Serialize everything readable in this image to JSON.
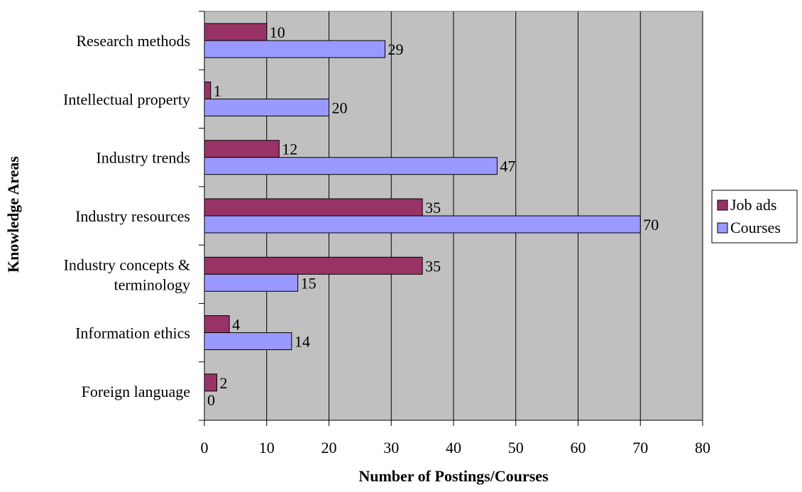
{
  "chart_data": {
    "type": "bar",
    "orientation": "horizontal",
    "categories": [
      "Research methods",
      "Intellectual property",
      "Industry trends",
      "Industry resources",
      "Industry concepts & terminology",
      "Information ethics",
      "Foreign language"
    ],
    "category_label_lines": [
      [
        "Research methods"
      ],
      [
        "Intellectual property"
      ],
      [
        "Industry trends"
      ],
      [
        "Industry resources"
      ],
      [
        "Industry concepts &",
        "terminology"
      ],
      [
        "Information ethics"
      ],
      [
        "Foreign language"
      ]
    ],
    "series": [
      {
        "name": "Job ads",
        "values": [
          10,
          1,
          12,
          35,
          35,
          4,
          2
        ],
        "color": "#993366"
      },
      {
        "name": "Courses",
        "values": [
          29,
          20,
          47,
          70,
          15,
          14,
          0
        ],
        "color": "#9999ff"
      }
    ],
    "xlabel": "Number of Postings/Courses",
    "ylabel": "Knowledge Areas",
    "xlim": [
      0,
      80
    ],
    "xticks": [
      0,
      10,
      20,
      30,
      40,
      50,
      60,
      70,
      80
    ],
    "grid": "vertical",
    "plot_background": "#c0c0c0",
    "legend_position": "right"
  }
}
